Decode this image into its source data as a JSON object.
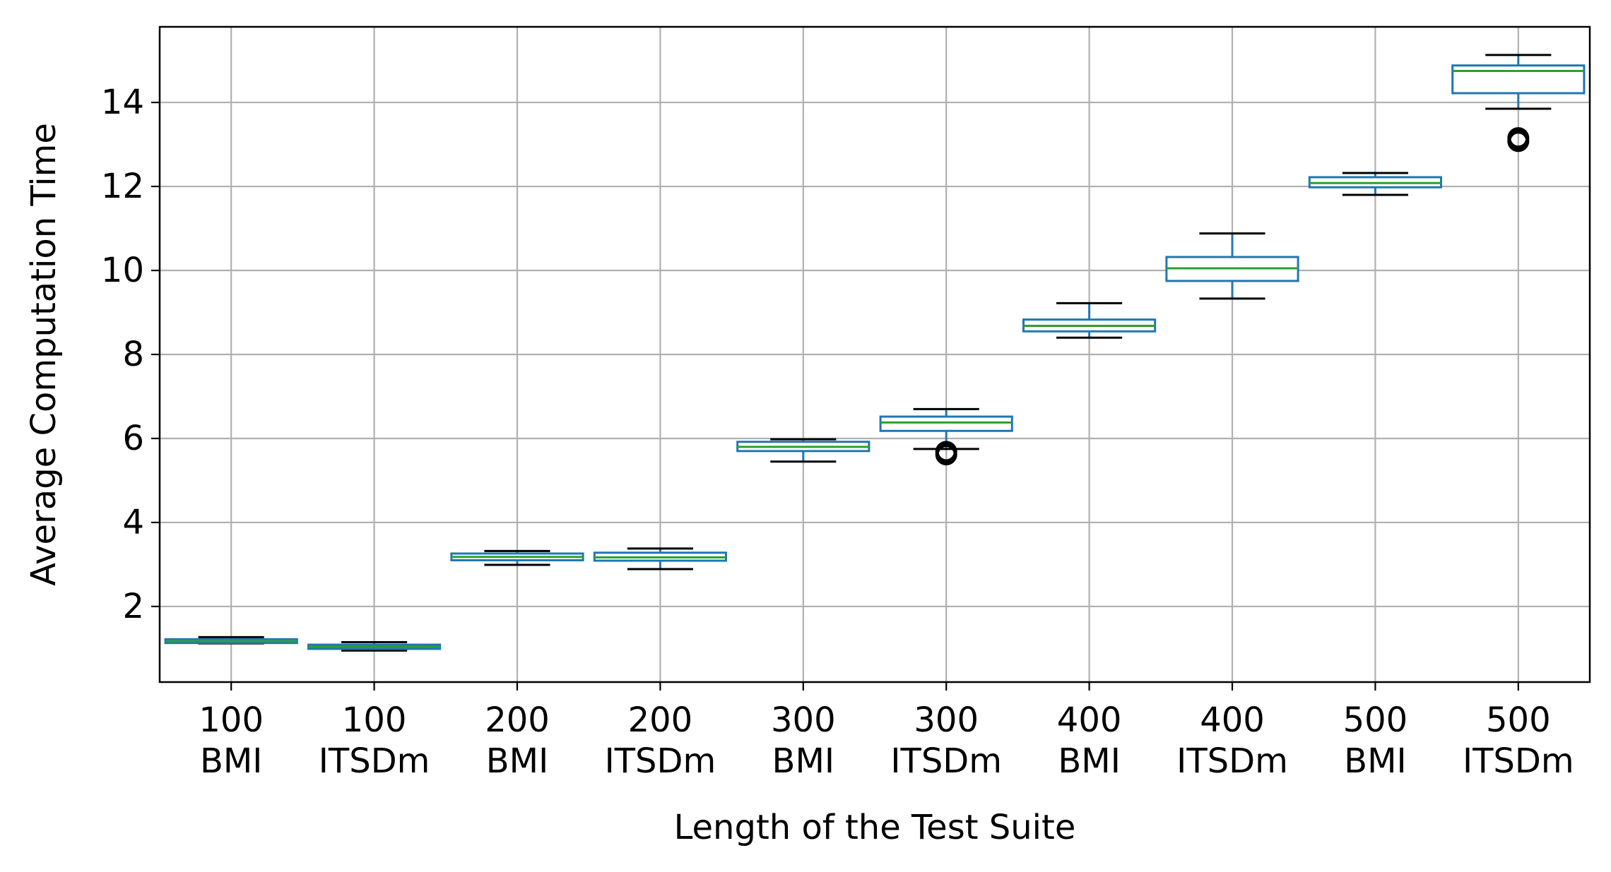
{
  "chart_data": {
    "type": "box",
    "xlabel": "Length of the Test Suite",
    "ylabel": "Average Computation Time",
    "ylim": [
      0.2,
      15.8
    ],
    "yticks": [
      2,
      4,
      6,
      8,
      10,
      12,
      14
    ],
    "grid": true,
    "legend": "none",
    "colors": {
      "box": "#1f77b4",
      "median": "#2ca02c",
      "whisker": "#000000",
      "flier": "#000000",
      "grid": "#b0b0b0"
    },
    "categories": [
      {
        "line1": "100",
        "line2": "BMI"
      },
      {
        "line1": "100",
        "line2": "ITSDm"
      },
      {
        "line1": "200",
        "line2": "BMI"
      },
      {
        "line1": "200",
        "line2": "ITSDm"
      },
      {
        "line1": "300",
        "line2": "BMI"
      },
      {
        "line1": "300",
        "line2": "ITSDm"
      },
      {
        "line1": "400",
        "line2": "BMI"
      },
      {
        "line1": "400",
        "line2": "ITSDm"
      },
      {
        "line1": "500",
        "line2": "BMI"
      },
      {
        "line1": "500",
        "line2": "ITSDm"
      }
    ],
    "boxes": [
      {
        "whislo": 1.12,
        "q1": 1.13,
        "med": 1.17,
        "q3": 1.22,
        "whishi": 1.27,
        "fliers": []
      },
      {
        "whislo": 0.95,
        "q1": 0.99,
        "med": 1.04,
        "q3": 1.09,
        "whishi": 1.15,
        "fliers": []
      },
      {
        "whislo": 2.99,
        "q1": 3.1,
        "med": 3.18,
        "q3": 3.26,
        "whishi": 3.32,
        "fliers": []
      },
      {
        "whislo": 2.89,
        "q1": 3.09,
        "med": 3.17,
        "q3": 3.28,
        "whishi": 3.38,
        "fliers": []
      },
      {
        "whislo": 5.45,
        "q1": 5.7,
        "med": 5.8,
        "q3": 5.92,
        "whishi": 5.98,
        "fliers": []
      },
      {
        "whislo": 5.75,
        "q1": 6.18,
        "med": 6.38,
        "q3": 6.52,
        "whishi": 6.7,
        "fliers": [
          5.62,
          5.68
        ]
      },
      {
        "whislo": 8.4,
        "q1": 8.55,
        "med": 8.68,
        "q3": 8.83,
        "whishi": 9.22,
        "fliers": []
      },
      {
        "whislo": 9.33,
        "q1": 9.75,
        "med": 10.05,
        "q3": 10.32,
        "whishi": 10.88,
        "fliers": []
      },
      {
        "whislo": 11.8,
        "q1": 11.98,
        "med": 12.08,
        "q3": 12.22,
        "whishi": 12.32,
        "fliers": []
      },
      {
        "whislo": 13.85,
        "q1": 14.22,
        "med": 14.75,
        "q3": 14.88,
        "whishi": 15.13,
        "fliers": [
          13.08,
          13.15
        ]
      }
    ]
  }
}
